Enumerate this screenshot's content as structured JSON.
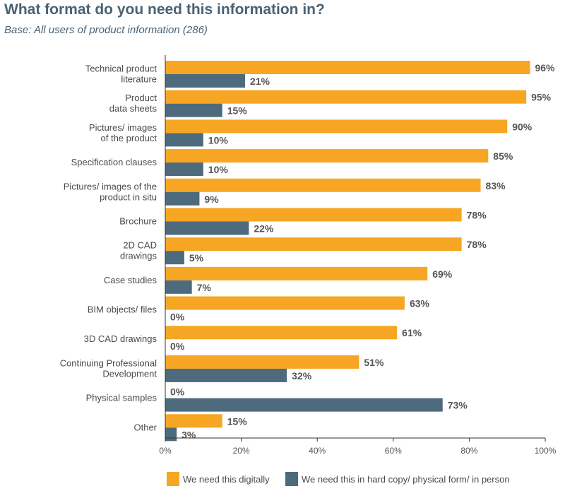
{
  "chart_data": {
    "type": "bar",
    "orientation": "horizontal",
    "title": "What format do you need this information in?",
    "subtitle": "Base: All users of product information (286)",
    "categories": [
      "Technical product literature",
      "Product data sheets",
      "Pictures/ images of the product",
      "Specification clauses",
      "Pictures/ images of the product in situ",
      "Brochure",
      "2D CAD drawings",
      "Case studies",
      "BIM objects/ files",
      "3D CAD drawings",
      "Continuing Professional Development",
      "Physical samples",
      "Other"
    ],
    "category_lines": [
      [
        "Technical product",
        "literature"
      ],
      [
        "Product",
        "data sheets"
      ],
      [
        "Pictures/ images",
        "of the product"
      ],
      [
        "Specification clauses"
      ],
      [
        "Pictures/ images of the",
        "product in situ"
      ],
      [
        "Brochure"
      ],
      [
        "2D CAD",
        "drawings"
      ],
      [
        "Case studies"
      ],
      [
        "BIM objects/ files"
      ],
      [
        "3D CAD drawings"
      ],
      [
        "Continuing Professional",
        "Development"
      ],
      [
        "Physical samples"
      ],
      [
        "Other"
      ]
    ],
    "series": [
      {
        "name": "We need this digitally",
        "color": "#f6a623",
        "values": [
          96,
          95,
          90,
          85,
          83,
          78,
          78,
          69,
          63,
          61,
          51,
          0,
          15
        ]
      },
      {
        "name": "We need this in hard copy/ physical form/ in person",
        "color": "#4d6b7d",
        "values": [
          21,
          15,
          10,
          10,
          9,
          22,
          5,
          7,
          0,
          0,
          32,
          73,
          3
        ]
      }
    ],
    "value_suffix": "%",
    "xlim": [
      0,
      100
    ],
    "xticks": [
      "0%",
      "20%",
      "40%",
      "60%",
      "80%",
      "100%"
    ],
    "xtick_values": [
      0,
      20,
      40,
      60,
      80,
      100
    ],
    "grid": false,
    "legend_position": "bottom"
  }
}
